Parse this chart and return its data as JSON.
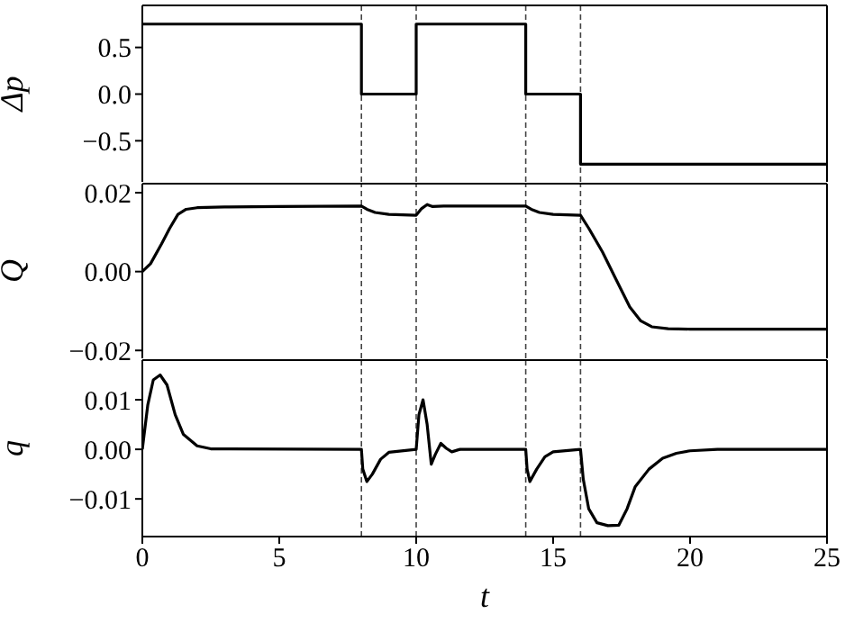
{
  "chart_data": [
    {
      "type": "step",
      "ylabel": "Δp",
      "tick_labels": "y",
      "grid": false,
      "legend": false,
      "xlim": [
        0,
        25
      ],
      "xticks": [
        0,
        5,
        10,
        15,
        20,
        25
      ],
      "ylim": [
        -0.94,
        0.95
      ],
      "yticks": [
        {
          "value": -0.5,
          "label": "−0.5"
        },
        {
          "value": 0,
          "label": "0.0"
        },
        {
          "value": 0.5,
          "label": "0.5"
        }
      ],
      "x": [
        0,
        8,
        10,
        14,
        16,
        25
      ],
      "series": [
        {
          "color": "#000000",
          "values": [
            0.75,
            0,
            0.75,
            0,
            -0.75,
            -0.75
          ]
        }
      ],
      "ref_lines": [
        {
          "axis": "x",
          "value": 8,
          "color": "#444444",
          "line_style": "dashed"
        },
        {
          "axis": "x",
          "value": 10,
          "color": "#444444",
          "line_style": "dashed"
        },
        {
          "axis": "x",
          "value": 14,
          "color": "#444444",
          "line_style": "dashed"
        },
        {
          "axis": "x",
          "value": 16,
          "color": "#444444",
          "line_style": "dashed"
        }
      ]
    },
    {
      "type": "line",
      "ylabel": "Q",
      "tick_labels": "y",
      "grid": false,
      "legend": false,
      "xlim": [
        0,
        25
      ],
      "xticks": [
        0,
        5,
        10,
        15,
        20,
        25
      ],
      "ylim": [
        -0.022,
        0.0223
      ],
      "yticks": [
        {
          "value": -0.02,
          "label": "−0.02"
        },
        {
          "value": 0,
          "label": "0.00"
        },
        {
          "value": 0.02,
          "label": "0.02"
        }
      ],
      "x": [
        0,
        0.3,
        0.7,
        1.0,
        1.3,
        1.6,
        2,
        3,
        5,
        8,
        8.2,
        8.5,
        9,
        10,
        10.2,
        10.4,
        10.6,
        11,
        14,
        14.2,
        14.5,
        15,
        16,
        16.3,
        16.8,
        17.3,
        17.8,
        18.2,
        18.6,
        19.2,
        20,
        25
      ],
      "series": [
        {
          "color": "#000000",
          "values": [
            0,
            0.002,
            0.007,
            0.011,
            0.0145,
            0.0158,
            0.0162,
            0.0164,
            0.0165,
            0.0166,
            0.0158,
            0.015,
            0.0145,
            0.0143,
            0.016,
            0.017,
            0.0165,
            0.0166,
            0.0166,
            0.0158,
            0.015,
            0.0145,
            0.0143,
            0.011,
            0.005,
            -0.002,
            -0.009,
            -0.0125,
            -0.014,
            -0.0145,
            -0.0146,
            -0.0146
          ]
        }
      ],
      "ref_lines": [
        {
          "axis": "x",
          "value": 8,
          "color": "#444444",
          "line_style": "dashed"
        },
        {
          "axis": "x",
          "value": 10,
          "color": "#444444",
          "line_style": "dashed"
        },
        {
          "axis": "x",
          "value": 14,
          "color": "#444444",
          "line_style": "dashed"
        },
        {
          "axis": "x",
          "value": 16,
          "color": "#444444",
          "line_style": "dashed"
        }
      ]
    },
    {
      "type": "line",
      "ylabel": "q",
      "xlabel": "t",
      "grid": false,
      "legend": false,
      "xlim": [
        0,
        25
      ],
      "xticks": [
        0,
        5,
        10,
        15,
        20,
        25
      ],
      "ylim": [
        -0.0176,
        0.018
      ],
      "yticks": [
        {
          "value": -0.01,
          "label": "−0.01"
        },
        {
          "value": 0,
          "label": "0.00"
        },
        {
          "value": 0.01,
          "label": "0.01"
        }
      ],
      "x": [
        0,
        0.2,
        0.4,
        0.65,
        0.9,
        1.2,
        1.5,
        2,
        2.5,
        8,
        8.05,
        8.2,
        8.4,
        8.7,
        9,
        10,
        10.1,
        10.25,
        10.4,
        10.55,
        10.7,
        10.9,
        11.1,
        11.3,
        11.6,
        14,
        14.05,
        14.15,
        14.4,
        14.7,
        15,
        16,
        16.1,
        16.3,
        16.6,
        17,
        17.4,
        17.7,
        18,
        18.5,
        19,
        19.5,
        20,
        21,
        25
      ],
      "series": [
        {
          "color": "#000000",
          "values": [
            0,
            0.009,
            0.014,
            0.015,
            0.013,
            0.007,
            0.003,
            0.0007,
            0.0001,
            0,
            -0.004,
            -0.0065,
            -0.005,
            -0.002,
            -0.0006,
            0,
            0.007,
            0.01,
            0.005,
            -0.003,
            -0.001,
            0.0012,
            0.0002,
            -0.0005,
            0,
            0,
            -0.004,
            -0.0065,
            -0.004,
            -0.0015,
            -0.0005,
            0,
            -0.006,
            -0.012,
            -0.0148,
            -0.0154,
            -0.0153,
            -0.012,
            -0.0075,
            -0.004,
            -0.0018,
            -0.0008,
            -0.0003,
            0,
            0
          ]
        }
      ],
      "ref_lines": [
        {
          "axis": "x",
          "value": 8,
          "color": "#444444",
          "line_style": "dashed"
        },
        {
          "axis": "x",
          "value": 10,
          "color": "#444444",
          "line_style": "dashed"
        },
        {
          "axis": "x",
          "value": 14,
          "color": "#444444",
          "line_style": "dashed"
        },
        {
          "axis": "x",
          "value": 16,
          "color": "#444444",
          "line_style": "dashed"
        }
      ]
    }
  ]
}
